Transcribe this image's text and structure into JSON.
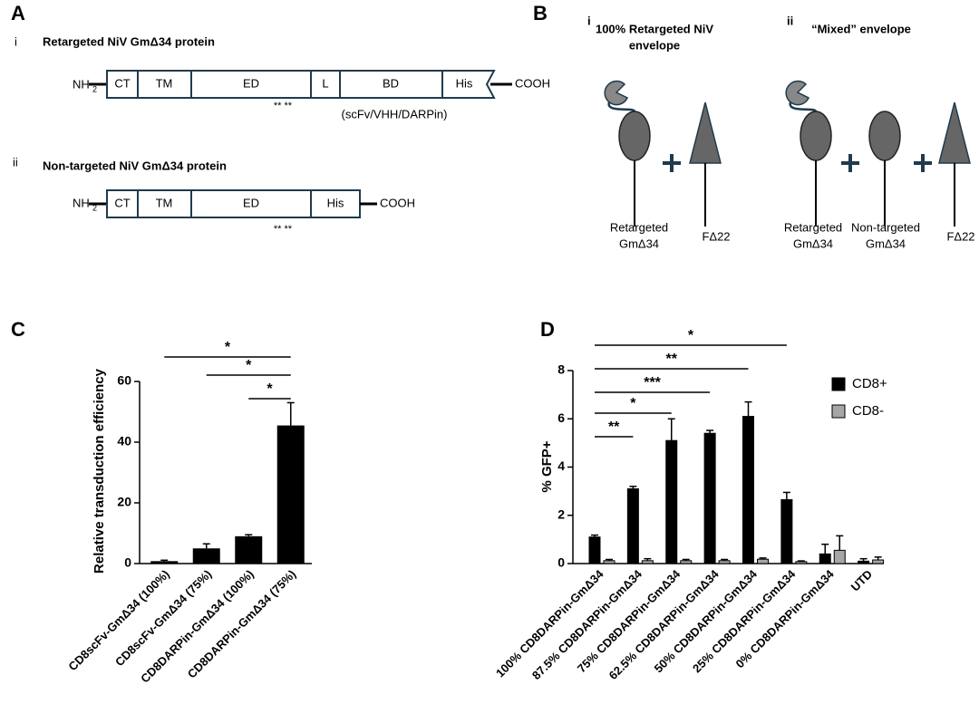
{
  "panel_a": {
    "label": "A",
    "rows": [
      {
        "index": "i",
        "title": "Retargeted NiV GmΔ34 protein",
        "n_term": "NH",
        "n_term_sub": "2",
        "c_term": "COOH",
        "domains": [
          "CT",
          "TM",
          "ED",
          "L",
          "BD",
          "His"
        ],
        "stars": "** **",
        "note": "(scFv/VHH/DARPin)"
      },
      {
        "index": "ii",
        "title": "Non-targeted NiV GmΔ34 protein",
        "n_term": "NH",
        "n_term_sub": "2",
        "c_term": "COOH",
        "domains": [
          "CT",
          "TM",
          "ED",
          "His"
        ],
        "stars": "** **"
      }
    ]
  },
  "panel_b": {
    "label": "B",
    "parts": [
      {
        "index": "i",
        "title": [
          "100% Retargeted NiV",
          "envelope"
        ],
        "items": [
          [
            "Retargeted",
            "GmΔ34"
          ],
          [
            "FΔ22"
          ]
        ]
      },
      {
        "index": "ii",
        "title": [
          "“Mixed” envelope"
        ],
        "items": [
          [
            "Retargeted",
            "GmΔ34"
          ],
          [
            "Non-targeted",
            "GmΔ34"
          ],
          [
            "FΔ22"
          ]
        ]
      }
    ]
  },
  "chart_data": [
    {
      "type": "bar",
      "panel": "C",
      "y_label": "Relative transduction efficiency",
      "categories": [
        "CD8scFv-GmΔ34 (100%)",
        "CD8scFv-GmΔ34 (75%)",
        "CD8DARPin-GmΔ34 (100%)",
        "CD8DARPin-GmΔ34 (75%)"
      ],
      "values": [
        0.8,
        5,
        9,
        45.5
      ],
      "errors": [
        0.3,
        1.5,
        0.5,
        7.5
      ],
      "color": "#000000",
      "ylim": [
        0,
        60
      ],
      "yticks": [
        0,
        20,
        40,
        60
      ],
      "annotations": [
        "*",
        "*",
        "*"
      ]
    },
    {
      "type": "grouped_bar",
      "panel": "D",
      "y_label": "% GFP+",
      "categories": [
        "100% CD8DARPin-GmΔ34",
        "87.5% CD8DARPin-GmΔ34",
        "75% CD8DARPin-GmΔ34",
        "62.5% CD8DARPin-GmΔ34",
        "50% CD8DARPin-GmΔ34",
        "25% CD8DARPin-GmΔ34",
        "0% CD8DARPin-GmΔ34",
        "UTD"
      ],
      "series": [
        {
          "name": "CD8+",
          "color": "#000000",
          "values": [
            1.1,
            3.1,
            5.1,
            5.4,
            6.1,
            2.65,
            0.4,
            0.1
          ],
          "errors": [
            0.08,
            0.1,
            0.9,
            0.12,
            0.6,
            0.3,
            0.4,
            0.1
          ]
        },
        {
          "name": "CD8-",
          "color": "#a6a6a6",
          "values": [
            0.12,
            0.12,
            0.12,
            0.12,
            0.18,
            0.08,
            0.55,
            0.15
          ],
          "errors": [
            0.05,
            0.08,
            0.05,
            0.05,
            0.05,
            0.03,
            0.6,
            0.12
          ]
        }
      ],
      "ylim": [
        0,
        8
      ],
      "yticks": [
        0,
        2,
        4,
        6,
        8
      ],
      "legend": "top-right",
      "annotations": [
        "**",
        "*",
        "***",
        "**",
        "*"
      ]
    }
  ]
}
